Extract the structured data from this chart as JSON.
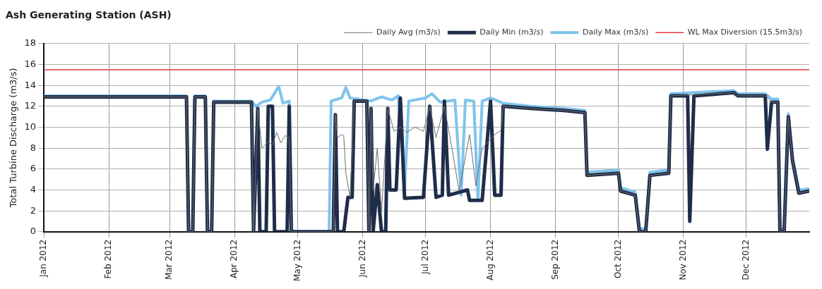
{
  "chart_data": {
    "type": "line",
    "title": "Ash Generating Station (ASH)",
    "ylabel": "Total Turbine Discharge (m3/s)",
    "xlim": [
      "2012-01-01",
      "2012-12-31"
    ],
    "xticks": [
      {
        "value": "2012-01-01",
        "label": "Jan 2012"
      },
      {
        "value": "2012-02-01",
        "label": "Feb 2012"
      },
      {
        "value": "2012-03-01",
        "label": "Mar 2012"
      },
      {
        "value": "2012-04-01",
        "label": "Apr 2012"
      },
      {
        "value": "2012-05-01",
        "label": "May 2012"
      },
      {
        "value": "2012-06-01",
        "label": "Jun 2012"
      },
      {
        "value": "2012-07-01",
        "label": "Jul 2012"
      },
      {
        "value": "2012-08-01",
        "label": "Aug 2012"
      },
      {
        "value": "2012-09-01",
        "label": "Sep 2012"
      },
      {
        "value": "2012-10-01",
        "label": "Oct 2012"
      },
      {
        "value": "2012-11-01",
        "label": "Nov 2012"
      },
      {
        "value": "2012-12-01",
        "label": "Dec 2012"
      }
    ],
    "ylim": [
      0,
      18
    ],
    "yticks": [
      0,
      2,
      4,
      6,
      8,
      10,
      12,
      14,
      16,
      18
    ],
    "grid": true,
    "legend": "top right",
    "marker": "none",
    "line_style": "solid",
    "ref_lines": [
      {
        "axis": "y",
        "value": 15.5,
        "label": "WL Max Diversion (15.5m3/s)",
        "color": "#e8383d"
      }
    ],
    "series": [
      {
        "name": "Daily Max (m3/s)",
        "color": "#7fc4ec",
        "x": [
          "2012-01-01",
          "2012-03-09",
          "2012-03-10",
          "2012-03-12",
          "2012-03-13",
          "2012-03-18",
          "2012-03-19",
          "2012-03-21",
          "2012-03-22",
          "2012-04-09",
          "2012-04-11",
          "2012-04-14",
          "2012-04-18",
          "2012-04-22",
          "2012-04-24",
          "2012-04-27",
          "2012-04-28",
          "2012-05-16",
          "2012-05-17",
          "2012-05-22",
          "2012-05-24",
          "2012-05-26",
          "2012-06-05",
          "2012-06-10",
          "2012-06-15",
          "2012-06-18",
          "2012-06-21",
          "2012-06-23",
          "2012-07-01",
          "2012-07-04",
          "2012-07-08",
          "2012-07-15",
          "2012-07-18",
          "2012-07-20",
          "2012-07-24",
          "2012-07-26",
          "2012-07-28",
          "2012-08-01",
          "2012-08-07",
          "2012-08-20",
          "2012-09-05",
          "2012-09-15",
          "2012-09-16",
          "2012-10-01",
          "2012-10-02",
          "2012-10-09",
          "2012-10-11",
          "2012-10-14",
          "2012-10-16",
          "2012-10-25",
          "2012-10-26",
          "2012-11-25",
          "2012-11-27",
          "2012-12-10",
          "2012-12-13",
          "2012-12-16",
          "2012-12-17",
          "2012-12-19",
          "2012-12-21",
          "2012-12-23",
          "2012-12-26",
          "2012-12-31"
        ],
        "values": [
          13.0,
          13.0,
          0,
          0,
          13.0,
          13.0,
          0,
          0,
          12.5,
          12.5,
          12.0,
          12.4,
          12.6,
          13.9,
          12.3,
          12.5,
          0,
          0,
          12.5,
          12.8,
          13.8,
          12.8,
          12.5,
          12.9,
          12.6,
          13.0,
          4.0,
          12.5,
          12.8,
          13.2,
          12.4,
          12.6,
          3.5,
          12.6,
          12.5,
          3.0,
          12.5,
          12.8,
          12.3,
          12.0,
          11.8,
          11.6,
          5.7,
          5.9,
          4.2,
          3.8,
          0.3,
          0.3,
          5.7,
          5.9,
          13.2,
          13.5,
          13.2,
          13.2,
          12.7,
          12.7,
          0.3,
          0.3,
          11.3,
          7.1,
          4.0,
          4.1
        ]
      },
      {
        "name": "Daily Min (m3/s)",
        "color": "#1f2d4a",
        "x": [
          "2012-01-01",
          "2012-03-09",
          "2012-03-10",
          "2012-03-12",
          "2012-03-13",
          "2012-03-18",
          "2012-03-19",
          "2012-03-21",
          "2012-03-22",
          "2012-04-09",
          "2012-04-10",
          "2012-04-12",
          "2012-04-13",
          "2012-04-16",
          "2012-04-17",
          "2012-04-19",
          "2012-04-20",
          "2012-04-26",
          "2012-04-27",
          "2012-04-28",
          "2012-05-18",
          "2012-05-19",
          "2012-05-20",
          "2012-05-23",
          "2012-05-25",
          "2012-05-27",
          "2012-05-28",
          "2012-06-03",
          "2012-06-04",
          "2012-06-05",
          "2012-06-06",
          "2012-06-08",
          "2012-06-10",
          "2012-06-12",
          "2012-06-13",
          "2012-06-14",
          "2012-06-17",
          "2012-06-19",
          "2012-06-21",
          "2012-06-30",
          "2012-07-03",
          "2012-07-06",
          "2012-07-09",
          "2012-07-10",
          "2012-07-12",
          "2012-07-21",
          "2012-07-22",
          "2012-07-28",
          "2012-08-01",
          "2012-08-03",
          "2012-08-06",
          "2012-08-07",
          "2012-08-20",
          "2012-09-05",
          "2012-09-15",
          "2012-09-16",
          "2012-10-01",
          "2012-10-02",
          "2012-10-09",
          "2012-10-11",
          "2012-10-14",
          "2012-10-16",
          "2012-10-25",
          "2012-10-26",
          "2012-11-03",
          "2012-11-04",
          "2012-11-06",
          "2012-11-25",
          "2012-11-27",
          "2012-12-10",
          "2012-12-11",
          "2012-12-13",
          "2012-12-16",
          "2012-12-17",
          "2012-12-19",
          "2012-12-21",
          "2012-12-23",
          "2012-12-26",
          "2012-12-31"
        ],
        "values": [
          12.9,
          12.9,
          0,
          0,
          12.9,
          12.9,
          0,
          0,
          12.4,
          12.4,
          0,
          11.8,
          0,
          0,
          12.0,
          12.0,
          0,
          0,
          12.0,
          0,
          0,
          11.2,
          0,
          0,
          3.3,
          3.3,
          12.5,
          12.5,
          0,
          11.8,
          0,
          4.5,
          0,
          0,
          11.8,
          4.0,
          4.0,
          12.8,
          3.2,
          3.3,
          12.0,
          3.3,
          3.5,
          12.5,
          3.5,
          4.0,
          3.0,
          3.0,
          12.5,
          3.5,
          3.5,
          12.0,
          11.8,
          11.6,
          11.4,
          5.4,
          5.6,
          3.9,
          3.5,
          0,
          0,
          5.4,
          5.6,
          13.0,
          13.0,
          1.0,
          13.0,
          13.3,
          13.0,
          13.0,
          7.9,
          12.4,
          12.4,
          0,
          0,
          11.0,
          6.8,
          3.7,
          3.9
        ]
      },
      {
        "name": "Daily Avg (m3/s)",
        "color": "#6e6e6e",
        "x": [
          "2012-01-01",
          "2012-03-09",
          "2012-03-10",
          "2012-03-12",
          "2012-03-13",
          "2012-03-18",
          "2012-03-19",
          "2012-03-21",
          "2012-03-22",
          "2012-04-09",
          "2012-04-10",
          "2012-04-12",
          "2012-04-14",
          "2012-04-17",
          "2012-04-19",
          "2012-04-21",
          "2012-04-23",
          "2012-04-25",
          "2012-04-27",
          "2012-04-28",
          "2012-05-18",
          "2012-05-19",
          "2012-05-20",
          "2012-05-22",
          "2012-05-23",
          "2012-05-24",
          "2012-05-26",
          "2012-05-28",
          "2012-06-03",
          "2012-06-04",
          "2012-06-05",
          "2012-06-06",
          "2012-06-08",
          "2012-06-10",
          "2012-06-13",
          "2012-06-16",
          "2012-06-19",
          "2012-06-22",
          "2012-06-26",
          "2012-06-30",
          "2012-07-03",
          "2012-07-06",
          "2012-07-10",
          "2012-07-14",
          "2012-07-17",
          "2012-07-22",
          "2012-07-25",
          "2012-07-28",
          "2012-08-03",
          "2012-08-06",
          "2012-08-07",
          "2012-08-20",
          "2012-09-05",
          "2012-09-15",
          "2012-09-16",
          "2012-10-01",
          "2012-10-02",
          "2012-10-09",
          "2012-10-11",
          "2012-10-14",
          "2012-10-16",
          "2012-10-25",
          "2012-10-26",
          "2012-11-25",
          "2012-11-27",
          "2012-12-10",
          "2012-12-13",
          "2012-12-16",
          "2012-12-17",
          "2012-12-19",
          "2012-12-21",
          "2012-12-23",
          "2012-12-26",
          "2012-12-31"
        ],
        "values": [
          12.9,
          12.9,
          0,
          0,
          12.9,
          12.9,
          0,
          0,
          12.4,
          12.4,
          0,
          11.8,
          8.0,
          8.6,
          8.3,
          9.5,
          8.5,
          9.2,
          9.0,
          0,
          0,
          11.2,
          9.0,
          9.3,
          9.2,
          5.6,
          3.3,
          12.5,
          12.5,
          0,
          11.8,
          4.0,
          8.0,
          2.0,
          11.8,
          9.6,
          10.0,
          9.5,
          10.0,
          9.6,
          12.0,
          9.0,
          12.0,
          7.5,
          3.9,
          9.3,
          4.4,
          8.0,
          9.3,
          9.7,
          12.0,
          11.8,
          11.6,
          11.4,
          5.4,
          5.6,
          3.9,
          3.5,
          0,
          0,
          5.4,
          5.6,
          13.0,
          13.3,
          13.0,
          13.0,
          12.4,
          12.4,
          0,
          0,
          11.0,
          6.8,
          3.7,
          3.9
        ]
      }
    ]
  }
}
